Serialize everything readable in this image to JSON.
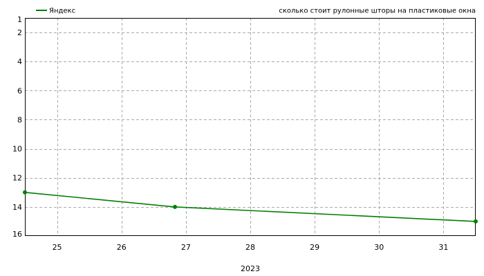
{
  "chart_data": {
    "type": "line",
    "title": "сколько стоит рулонные шторы на пластиковые окна",
    "xlabel": "2023",
    "ylabel": "",
    "x_ticks": [
      "25",
      "26",
      "27",
      "28",
      "29",
      "30",
      "31"
    ],
    "y_ticks": [
      "1",
      "2",
      "4",
      "6",
      "8",
      "10",
      "12",
      "14",
      "16"
    ],
    "xlim": [
      24.5,
      31.5
    ],
    "ylim": [
      1,
      16
    ],
    "y_inverted": true,
    "grid": true,
    "legend_position": "top-left",
    "series": [
      {
        "name": "Яндекс",
        "color": "#007f00",
        "points": [
          {
            "x": 24.5,
            "y": 13
          },
          {
            "x": 26.83,
            "y": 14
          },
          {
            "x": 31.5,
            "y": 15
          }
        ]
      }
    ]
  }
}
